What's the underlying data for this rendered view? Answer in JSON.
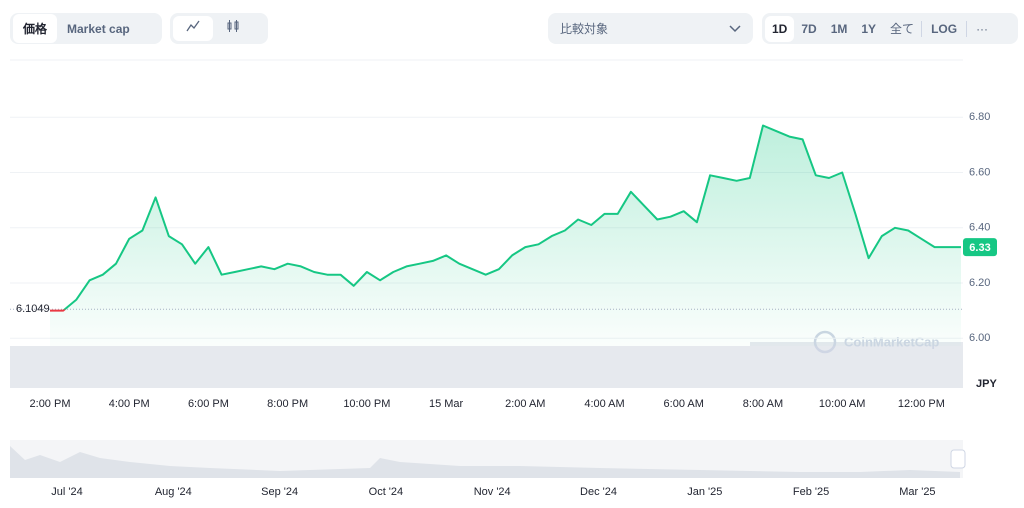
{
  "toolbar": {
    "tabs": [
      "価格",
      "Market cap"
    ],
    "compare": "比較対象",
    "ranges": [
      "1D",
      "7D",
      "1M",
      "1Y",
      "全て"
    ],
    "log": "LOG",
    "more": "···"
  },
  "chart_data": {
    "type": "line",
    "x": [
      "2:00 PM",
      null,
      null,
      null,
      null,
      null,
      "4:00 PM",
      null,
      null,
      null,
      null,
      null,
      "6:00 PM",
      null,
      null,
      null,
      null,
      null,
      "8:00 PM",
      null,
      null,
      null,
      null,
      null,
      "10:00 PM",
      null,
      null,
      null,
      null,
      null,
      "15 Mar",
      null,
      null,
      null,
      null,
      null,
      "2:00 AM",
      null,
      null,
      null,
      null,
      null,
      "4:00 AM",
      null,
      null,
      null,
      null,
      null,
      "6:00 AM",
      null,
      null,
      null,
      null,
      null,
      "8:00 AM",
      null,
      null,
      null,
      null,
      null,
      "10:00 AM",
      null,
      null,
      null,
      null,
      null,
      "12:00 PM",
      null,
      null,
      null
    ],
    "series": [
      {
        "color": "#16c784",
        "below_color": "#ea3943",
        "values": [
          6.1,
          6.1,
          6.14,
          6.21,
          6.23,
          6.27,
          6.36,
          6.39,
          6.51,
          6.37,
          6.34,
          6.27,
          6.33,
          6.23,
          6.24,
          6.25,
          6.26,
          6.25,
          6.27,
          6.26,
          6.24,
          6.23,
          6.23,
          6.19,
          6.24,
          6.21,
          6.24,
          6.26,
          6.27,
          6.28,
          6.3,
          6.27,
          6.25,
          6.23,
          6.25,
          6.3,
          6.33,
          6.34,
          6.37,
          6.39,
          6.43,
          6.41,
          6.45,
          6.45,
          6.53,
          6.48,
          6.43,
          6.44,
          6.46,
          6.42,
          6.59,
          6.58,
          6.57,
          6.58,
          6.77,
          6.75,
          6.73,
          6.72,
          6.59,
          6.58,
          6.6,
          6.45,
          6.29,
          6.37,
          6.4,
          6.39,
          6.36,
          6.33,
          6.33,
          6.33
        ]
      }
    ],
    "ylim": [
      5.82,
      7.0
    ],
    "yticks": [
      {
        "value": 6.0,
        "label": "6.00"
      },
      {
        "value": 6.2,
        "label": "6.20"
      },
      {
        "value": 6.4,
        "label": "6.40"
      },
      {
        "value": 6.6,
        "label": "6.60"
      },
      {
        "value": 6.8,
        "label": "6.80"
      }
    ],
    "grid": true,
    "reference": 6.1049,
    "price_tag": 6.33,
    "y_unit": "JPY",
    "watermark": "CoinMarketCap",
    "navigator_labels": [
      "Jul '24",
      "Aug '24",
      "Sep '24",
      "Oct '24",
      "Nov '24",
      "Dec '24",
      "Jan '25",
      "Feb '25",
      "Mar '25"
    ]
  }
}
